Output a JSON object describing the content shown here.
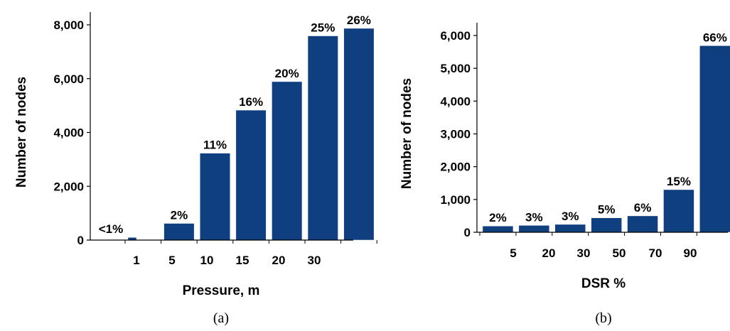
{
  "chart_data": [
    {
      "type": "bar",
      "caption": "(a)",
      "xlabel": "Pressure, m",
      "ylabel": "Number of nodes",
      "ylim": [
        0,
        8000
      ],
      "yticks": [
        "0",
        "2,000",
        "4,000",
        "6,000",
        "8,000"
      ],
      "xticks": [
        "1",
        "5",
        "10",
        "15",
        "20",
        "30"
      ],
      "values": [
        100,
        620,
        3230,
        4830,
        5890,
        7590,
        7870
      ],
      "labels": [
        "<1%",
        "2%",
        "11%",
        "16%",
        "20%",
        "25%",
        "26%"
      ],
      "color": "#0f3f7f",
      "grid": false
    },
    {
      "type": "bar",
      "caption": "(b)",
      "xlabel": "DSR %",
      "ylabel": "Number of nodes",
      "ylim": [
        0,
        6000
      ],
      "yticks": [
        "0",
        "1,000",
        "2,000",
        "3,000",
        "4,000",
        "5,000",
        "6,000"
      ],
      "xticks": [
        "5",
        "20",
        "30",
        "50",
        "70",
        "90"
      ],
      "values": [
        190,
        210,
        240,
        440,
        500,
        1300,
        5690
      ],
      "labels": [
        "2%",
        "3%",
        "3%",
        "5%",
        "6%",
        "15%",
        "66%"
      ],
      "color": "#0f3f7f",
      "grid": false
    }
  ]
}
